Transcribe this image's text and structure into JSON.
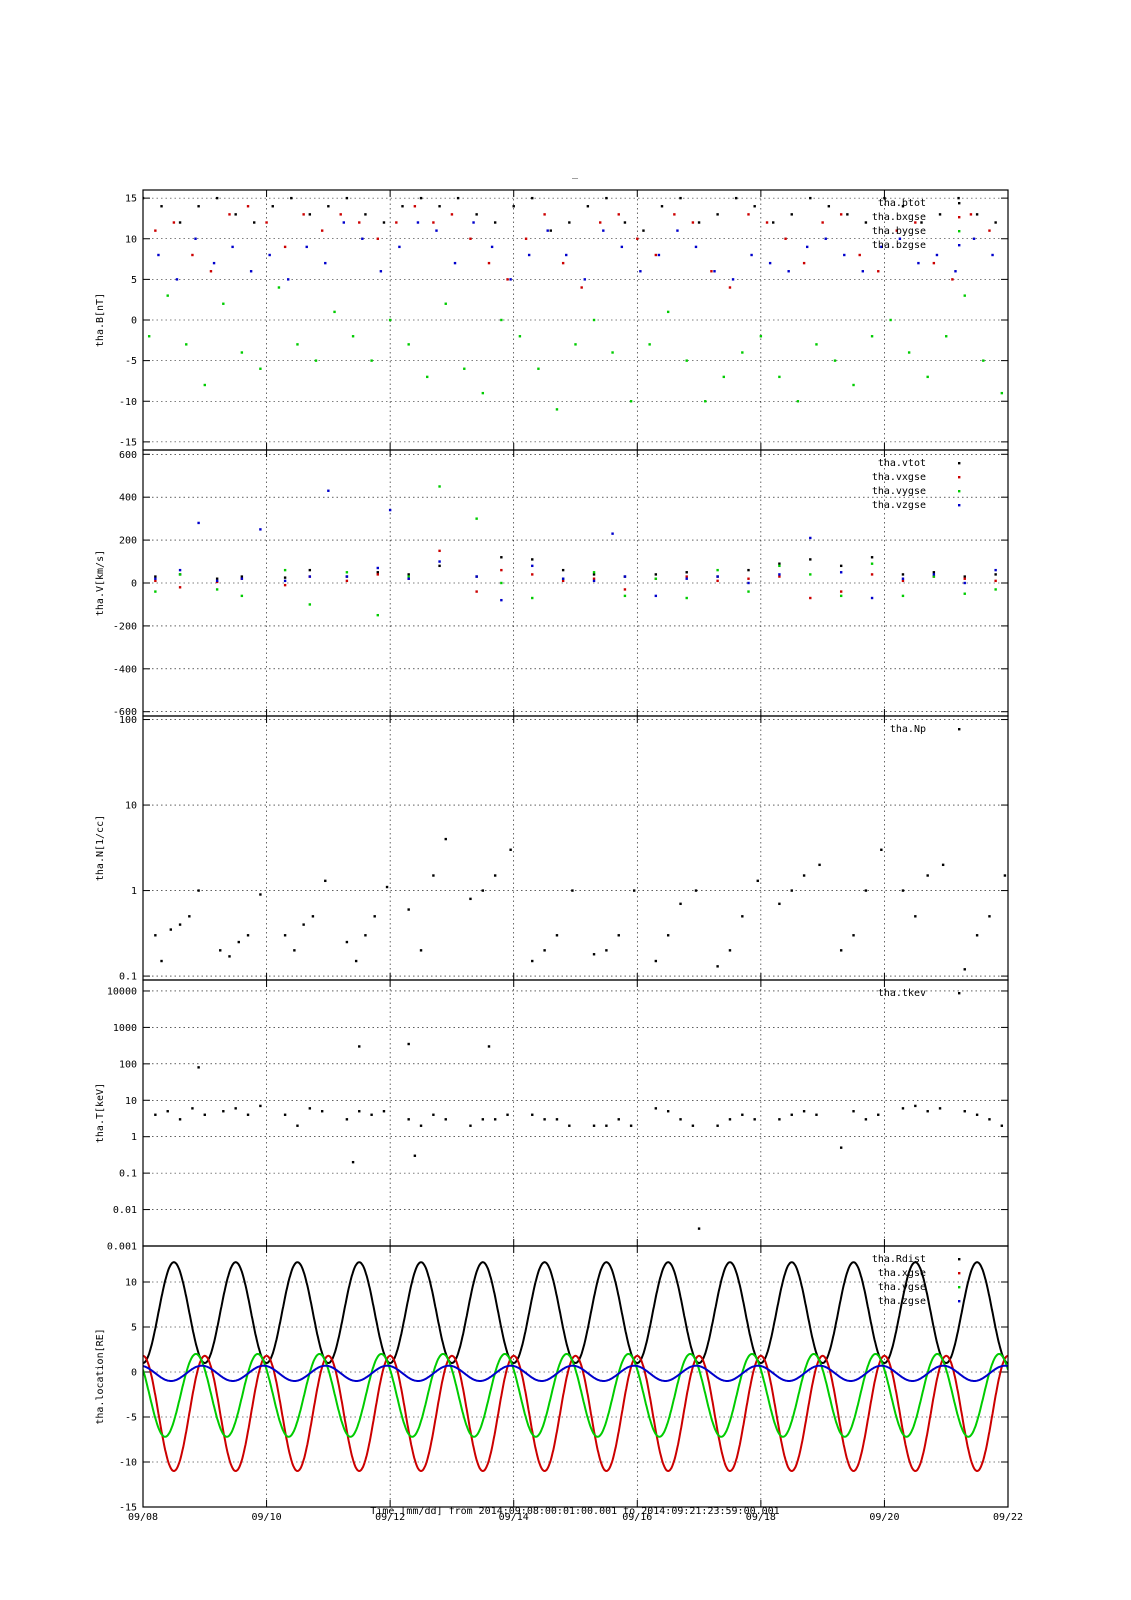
{
  "figure": {
    "title": "_",
    "xlabel": "Time [mm/dd]  from 2014:09:08:00:01:00.001  to  2014:09:21:23:59:00.001"
  },
  "colors": {
    "black": "#000000",
    "red": "#cc0000",
    "green": "#00cc00",
    "blue": "#0000cc"
  },
  "chart_data": [
    {
      "type": "scatter",
      "panel": "B",
      "ylabel": "tha.B[nT]",
      "xlim": [
        0,
        14
      ],
      "ylim": [
        -16,
        16
      ],
      "yticks": [
        15,
        10,
        5,
        0,
        -5,
        -10,
        -15
      ],
      "ytick_labels": [
        "15",
        "10",
        "5",
        "0",
        "-5",
        "-10",
        "-15"
      ],
      "legend_position": "top-right",
      "series": [
        {
          "name": "tha.btot",
          "color": "#000000",
          "x": [
            0.0,
            0.3,
            0.6,
            0.9,
            1.2,
            1.5,
            1.8,
            2.1,
            2.4,
            2.7,
            3.0,
            3.3,
            3.6,
            3.9,
            4.2,
            4.5,
            4.8,
            5.1,
            5.4,
            5.7,
            6.0,
            6.3,
            6.6,
            6.9,
            7.2,
            7.5,
            7.8,
            8.1,
            8.4,
            8.7,
            9.0,
            9.3,
            9.6,
            9.9,
            10.2,
            10.5,
            10.8,
            11.1,
            11.4,
            11.7,
            12.0,
            12.3,
            12.6,
            12.9,
            13.2,
            13.5,
            13.8
          ],
          "y": [
            15,
            14,
            12,
            14,
            15,
            13,
            12,
            14,
            15,
            13,
            14,
            15,
            13,
            12,
            14,
            15,
            14,
            15,
            13,
            12,
            14,
            15,
            11,
            12,
            14,
            15,
            12,
            11,
            14,
            15,
            12,
            13,
            15,
            14,
            12,
            13,
            15,
            14,
            13,
            12,
            15,
            14,
            12,
            13,
            15,
            13,
            12
          ]
        },
        {
          "name": "tha.bxgse",
          "color": "#cc0000",
          "x": [
            0.2,
            0.5,
            0.8,
            1.1,
            1.4,
            1.7,
            2.0,
            2.3,
            2.6,
            2.9,
            3.2,
            3.5,
            3.8,
            4.1,
            4.4,
            4.7,
            5.0,
            5.3,
            5.6,
            5.9,
            6.2,
            6.5,
            6.8,
            7.1,
            7.4,
            7.7,
            8.0,
            8.3,
            8.6,
            8.9,
            9.2,
            9.5,
            9.8,
            10.1,
            10.4,
            10.7,
            11.0,
            11.3,
            11.6,
            11.9,
            12.2,
            12.5,
            12.8,
            13.1,
            13.4,
            13.7
          ],
          "y": [
            11,
            12,
            8,
            6,
            13,
            14,
            12,
            9,
            13,
            11,
            13,
            12,
            10,
            12,
            14,
            12,
            13,
            10,
            7,
            5,
            10,
            13,
            7,
            4,
            12,
            13,
            10,
            8,
            13,
            12,
            6,
            4,
            13,
            12,
            10,
            7,
            12,
            13,
            8,
            6,
            11,
            12,
            7,
            5,
            13,
            11
          ]
        },
        {
          "name": "tha.bygse",
          "color": "#00cc00",
          "x": [
            0.1,
            0.4,
            0.7,
            1.0,
            1.3,
            1.6,
            1.9,
            2.2,
            2.5,
            2.8,
            3.1,
            3.4,
            3.7,
            4.0,
            4.3,
            4.6,
            4.9,
            5.2,
            5.5,
            5.8,
            6.1,
            6.4,
            6.7,
            7.0,
            7.3,
            7.6,
            7.9,
            8.2,
            8.5,
            8.8,
            9.1,
            9.4,
            9.7,
            10.0,
            10.3,
            10.6,
            10.9,
            11.2,
            11.5,
            11.8,
            12.1,
            12.4,
            12.7,
            13.0,
            13.3,
            13.6,
            13.9
          ],
          "y": [
            -2,
            3,
            -3,
            -8,
            2,
            -4,
            -6,
            4,
            -3,
            -5,
            1,
            -2,
            -5,
            0,
            -3,
            -7,
            2,
            -6,
            -9,
            0,
            -2,
            -6,
            -11,
            -3,
            0,
            -4,
            -10,
            -3,
            1,
            -5,
            -10,
            -7,
            -4,
            -2,
            -7,
            -10,
            -3,
            -5,
            -8,
            -2,
            0,
            -4,
            -7,
            -2,
            3,
            -5,
            -9
          ]
        },
        {
          "name": "tha.bzgse",
          "color": "#0000cc",
          "x": [
            0.25,
            0.55,
            0.85,
            1.15,
            1.45,
            1.75,
            2.05,
            2.35,
            2.65,
            2.95,
            3.25,
            3.55,
            3.85,
            4.15,
            4.45,
            4.75,
            5.05,
            5.35,
            5.65,
            5.95,
            6.25,
            6.55,
            6.85,
            7.15,
            7.45,
            7.75,
            8.05,
            8.35,
            8.65,
            8.95,
            9.25,
            9.55,
            9.85,
            10.15,
            10.45,
            10.75,
            11.05,
            11.35,
            11.65,
            11.95,
            12.25,
            12.55,
            12.85,
            13.15,
            13.45,
            13.75
          ],
          "y": [
            8,
            5,
            10,
            7,
            9,
            6,
            8,
            5,
            9,
            7,
            12,
            10,
            6,
            9,
            12,
            11,
            7,
            12,
            9,
            5,
            8,
            11,
            8,
            5,
            11,
            9,
            6,
            8,
            11,
            9,
            6,
            5,
            8,
            7,
            6,
            9,
            10,
            8,
            6,
            9,
            10,
            7,
            8,
            6,
            10,
            8
          ]
        }
      ]
    },
    {
      "type": "scatter",
      "panel": "V",
      "ylabel": "tha.V[km/s]",
      "xlim": [
        0,
        14
      ],
      "ylim": [
        -620,
        620
      ],
      "yticks": [
        600,
        400,
        200,
        0,
        -200,
        -400,
        -600
      ],
      "ytick_labels": [
        "600",
        "400",
        "200",
        "0",
        "-200",
        "-400",
        "-600"
      ],
      "legend_position": "top-right",
      "series": [
        {
          "name": "tha.vtot",
          "color": "#000000",
          "x": [
            0.2,
            0.6,
            1.2,
            1.6,
            2.3,
            2.7,
            3.3,
            3.8,
            4.3,
            4.8,
            5.4,
            5.8,
            6.3,
            6.8,
            7.3,
            7.8,
            8.3,
            8.8,
            9.3,
            9.8,
            10.3,
            10.8,
            11.3,
            11.8,
            12.3,
            12.8,
            13.3,
            13.8
          ],
          "y": [
            30,
            40,
            20,
            30,
            25,
            60,
            30,
            50,
            40,
            80,
            30,
            120,
            110,
            60,
            40,
            30,
            40,
            50,
            30,
            60,
            90,
            110,
            80,
            120,
            40,
            50,
            30,
            40
          ]
        },
        {
          "name": "tha.vxgse",
          "color": "#cc0000",
          "x": [
            0.2,
            0.6,
            1.2,
            1.6,
            2.3,
            2.7,
            3.3,
            3.8,
            4.3,
            4.8,
            5.4,
            5.8,
            6.3,
            6.8,
            7.3,
            7.8,
            8.3,
            8.8,
            9.3,
            9.8,
            10.3,
            10.8,
            11.3,
            11.8,
            12.3,
            12.8,
            13.3,
            13.8
          ],
          "y": [
            10,
            -20,
            5,
            20,
            -10,
            30,
            10,
            40,
            20,
            150,
            -40,
            60,
            40,
            10,
            20,
            -30,
            20,
            30,
            10,
            20,
            30,
            -70,
            -40,
            40,
            10,
            30,
            20,
            10
          ]
        },
        {
          "name": "tha.vygse",
          "color": "#00cc00",
          "x": [
            0.2,
            0.6,
            1.2,
            1.6,
            2.3,
            2.7,
            3.3,
            3.8,
            4.3,
            4.8,
            5.4,
            5.8,
            6.3,
            6.8,
            7.3,
            7.8,
            8.3,
            8.8,
            9.3,
            9.8,
            10.3,
            10.8,
            11.3,
            11.8,
            12.3,
            12.8,
            13.3,
            13.8
          ],
          "y": [
            -40,
            40,
            -30,
            -60,
            60,
            -100,
            50,
            -150,
            30,
            450,
            300,
            0,
            -70,
            20,
            50,
            -60,
            20,
            -70,
            60,
            -40,
            80,
            40,
            -60,
            90,
            -60,
            30,
            -50,
            -30
          ]
        },
        {
          "name": "tha.vzgse",
          "color": "#0000cc",
          "x": [
            0.2,
            0.6,
            0.9,
            1.2,
            1.6,
            1.9,
            2.3,
            2.7,
            3.0,
            3.3,
            3.8,
            4.0,
            4.3,
            4.8,
            5.4,
            5.8,
            6.3,
            6.8,
            7.3,
            7.6,
            7.8,
            8.3,
            8.8,
            9.3,
            9.8,
            10.3,
            10.8,
            11.3,
            11.8,
            12.3,
            12.8,
            13.3,
            13.8
          ],
          "y": [
            20,
            60,
            280,
            10,
            20,
            250,
            10,
            30,
            430,
            30,
            70,
            340,
            20,
            100,
            30,
            -80,
            80,
            20,
            10,
            230,
            30,
            -60,
            20,
            30,
            0,
            40,
            210,
            50,
            -70,
            20,
            40,
            0,
            60
          ]
        }
      ]
    },
    {
      "type": "scatter",
      "panel": "N",
      "ylabel": "tha.N[1/cc]",
      "xlim": [
        0,
        14
      ],
      "ylim": [
        0.09,
        110
      ],
      "yscale": "log",
      "yticks": [
        100,
        10,
        1,
        0.1
      ],
      "ytick_labels": [
        "100",
        "10",
        "1",
        "0.1"
      ],
      "legend_position": "top-right",
      "series": [
        {
          "name": "tha.Np",
          "color": "#000000",
          "x": [
            0.2,
            0.3,
            0.45,
            0.6,
            0.75,
            0.9,
            1.25,
            1.4,
            1.55,
            1.7,
            1.9,
            2.3,
            2.45,
            2.6,
            2.75,
            2.95,
            3.3,
            3.45,
            3.6,
            3.75,
            3.95,
            4.3,
            4.5,
            4.7,
            4.9,
            5.3,
            5.5,
            5.7,
            5.95,
            6.3,
            6.5,
            6.7,
            6.95,
            7.3,
            7.5,
            7.7,
            7.95,
            8.3,
            8.5,
            8.7,
            8.95,
            9.3,
            9.5,
            9.7,
            9.95,
            10.3,
            10.5,
            10.7,
            10.95,
            11.3,
            11.5,
            11.7,
            11.95,
            12.3,
            12.5,
            12.7,
            12.95,
            13.3,
            13.5,
            13.7,
            13.95
          ],
          "y": [
            0.3,
            0.15,
            0.35,
            0.4,
            0.5,
            1.0,
            0.2,
            0.17,
            0.25,
            0.3,
            0.9,
            0.3,
            0.2,
            0.4,
            0.5,
            1.3,
            0.25,
            0.15,
            0.3,
            0.5,
            1.1,
            0.6,
            0.2,
            1.5,
            4.0,
            0.8,
            1.0,
            1.5,
            3.0,
            0.15,
            0.2,
            0.3,
            1.0,
            0.18,
            0.2,
            0.3,
            1.0,
            0.15,
            0.3,
            0.7,
            1.0,
            0.13,
            0.2,
            0.5,
            1.3,
            0.7,
            1.0,
            1.5,
            2.0,
            0.2,
            0.3,
            1.0,
            3.0,
            1.0,
            0.5,
            1.5,
            2.0,
            0.12,
            0.3,
            0.5,
            1.5
          ]
        }
      ]
    },
    {
      "type": "scatter",
      "panel": "T",
      "ylabel": "tha.T[keV]",
      "xlim": [
        0,
        14
      ],
      "ylim": [
        0.001,
        20000
      ],
      "yscale": "log",
      "yticks": [
        10000,
        1000,
        100,
        10,
        1,
        0.1,
        0.01,
        0.001
      ],
      "ytick_labels": [
        "10000",
        "1000",
        "100",
        "10",
        "1",
        "0.1",
        "0.01",
        "0.001"
      ],
      "legend_position": "top-right",
      "series": [
        {
          "name": "tha.tkev",
          "color": "#000000",
          "x": [
            0.2,
            0.4,
            0.6,
            0.8,
            1.0,
            1.3,
            1.5,
            1.7,
            1.9,
            2.3,
            2.5,
            2.7,
            2.9,
            3.3,
            3.5,
            3.7,
            3.9,
            4.3,
            4.5,
            4.7,
            4.9,
            5.3,
            5.5,
            5.7,
            5.9,
            6.3,
            6.5,
            6.7,
            6.9,
            7.3,
            7.5,
            7.7,
            7.9,
            8.3,
            8.5,
            8.7,
            8.9,
            9.3,
            9.5,
            9.7,
            9.9,
            10.3,
            10.5,
            10.7,
            10.9,
            11.3,
            11.5,
            11.7,
            11.9,
            12.3,
            12.5,
            12.7,
            12.9,
            13.3,
            13.5,
            13.7,
            13.9,
            0.9,
            3.5,
            4.3,
            5.6,
            3.4,
            4.4,
            9.0
          ],
          "y": [
            4,
            5,
            3,
            6,
            4,
            5,
            6,
            4,
            7,
            4,
            2,
            6,
            5,
            3,
            5,
            4,
            5,
            3,
            2,
            4,
            3,
            2,
            3,
            3,
            4,
            4,
            3,
            3,
            2,
            2,
            2,
            3,
            2,
            6,
            5,
            3,
            2,
            2,
            3,
            4,
            3,
            3,
            4,
            5,
            4,
            0.5,
            5,
            3,
            4,
            6,
            7,
            5,
            6,
            5,
            4,
            3,
            2,
            80,
            300,
            350,
            300,
            0.2,
            0.3,
            0.003
          ]
        }
      ]
    },
    {
      "type": "line",
      "panel": "location",
      "ylabel": "tha.location[RE]",
      "xlim": [
        0,
        14
      ],
      "ylim": [
        -15,
        14
      ],
      "yticks": [
        10,
        5,
        0,
        -5,
        -10,
        -15
      ],
      "ytick_labels": [
        "10",
        "5",
        "0",
        "-5",
        "-10",
        "-15"
      ],
      "xticks": [
        0,
        2,
        4,
        6,
        8,
        10,
        12,
        14
      ],
      "xtick_labels": [
        "09/08",
        "09/10",
        "09/12",
        "09/14",
        "09/16",
        "09/18",
        "09/20",
        "09/22"
      ],
      "orbit_period_days": 1.0,
      "legend_position": "top-right",
      "series": [
        {
          "name": "tha.Rdist",
          "color": "#000000",
          "min": 1.0,
          "max": 12.2
        },
        {
          "name": "tha.xgse",
          "color": "#cc0000",
          "min": -11.0,
          "max": 1.8
        },
        {
          "name": "tha.ygse",
          "color": "#00cc00",
          "min": -7.2,
          "max": 2.0
        },
        {
          "name": "tha.zgse",
          "color": "#0000cc",
          "min": -1.0,
          "max": 0.7
        }
      ]
    }
  ]
}
